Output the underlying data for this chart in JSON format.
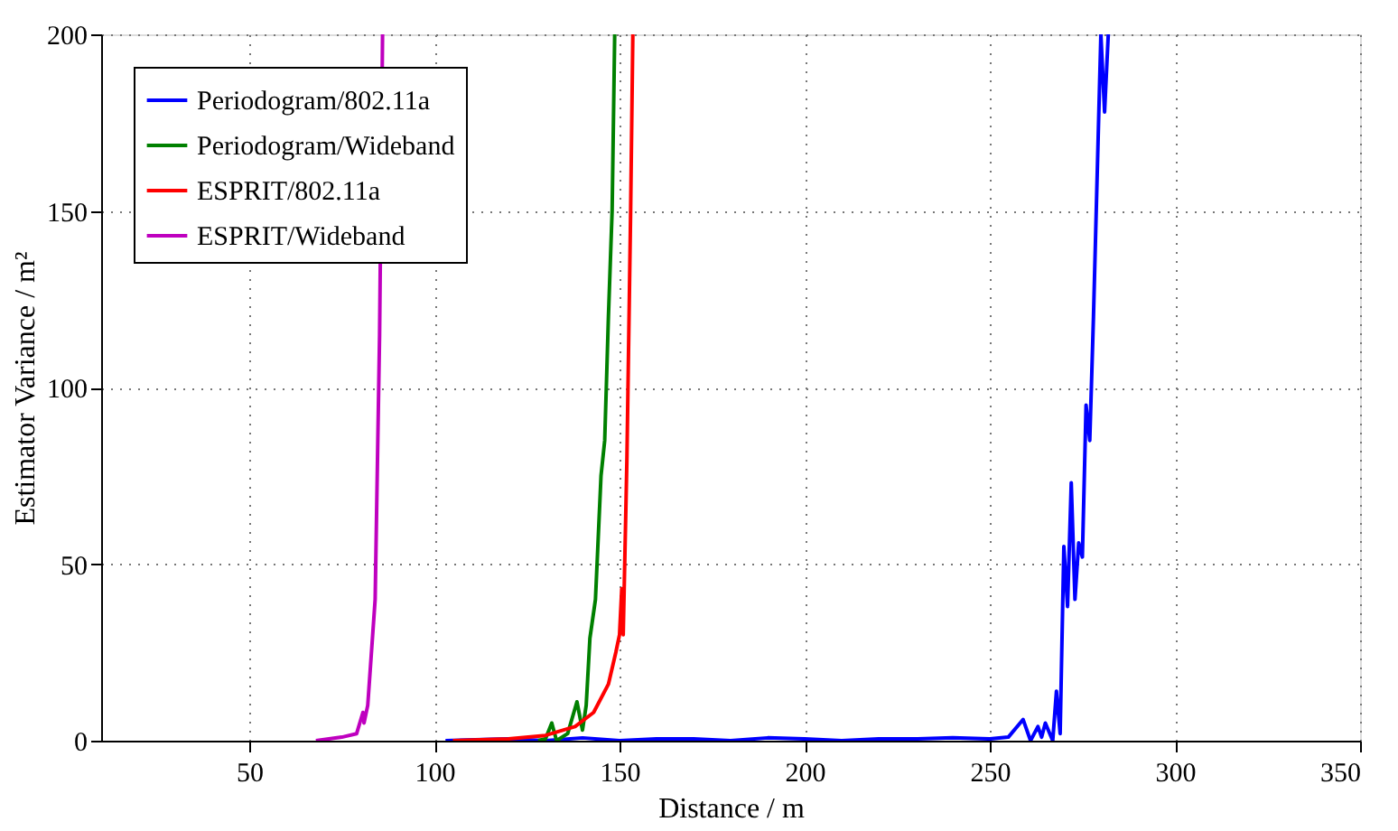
{
  "chart_data": {
    "type": "line",
    "xlabel": "Distance / m",
    "ylabel": "Estimator Variance / m²",
    "xlim": [
      10,
      350
    ],
    "ylim": [
      0,
      200
    ],
    "xticks": [
      50,
      100,
      150,
      200,
      250,
      300,
      350
    ],
    "yticks": [
      0,
      50,
      100,
      150,
      200
    ],
    "grid": true,
    "legend": "top left",
    "line_style": "solid",
    "marker": "none",
    "series": [
      {
        "name": "Periodogram/802.11a",
        "color": "#0000ff",
        "x": [
          103,
          120,
          130,
          140,
          150,
          160,
          170,
          180,
          190,
          200,
          210,
          220,
          230,
          240,
          250,
          255,
          259,
          261,
          263,
          264,
          265,
          267,
          268,
          269,
          270,
          271,
          272,
          273,
          274,
          275,
          276,
          277,
          278,
          280,
          281,
          282
        ],
        "values": [
          0,
          0.5,
          0,
          0.8,
          0,
          0.5,
          0.5,
          0,
          0.8,
          0.5,
          0,
          0.5,
          0.5,
          0.8,
          0.5,
          1,
          6,
          0,
          4,
          1,
          5,
          0,
          14,
          2,
          55,
          38,
          73,
          40,
          56,
          52,
          95,
          85,
          120,
          200,
          178,
          200
        ]
      },
      {
        "name": "Periodogram/Wideband",
        "color": "#008000",
        "x": [
          128,
          130,
          131.7,
          133,
          136,
          138.5,
          140,
          141,
          142,
          143.5,
          145,
          146,
          147,
          148,
          148.7
        ],
        "values": [
          0,
          0.5,
          5,
          0,
          2,
          11,
          3,
          10,
          29,
          40,
          75,
          85,
          120,
          150,
          200
        ]
      },
      {
        "name": "ESPRIT/802.11a",
        "color": "#ff0000",
        "x": [
          105,
          120,
          130,
          138,
          143,
          147,
          149,
          150,
          150.6,
          151,
          152,
          153,
          153.6
        ],
        "values": [
          0,
          0.5,
          1.5,
          4,
          8,
          16,
          25,
          30,
          43,
          30,
          80,
          150,
          200
        ]
      },
      {
        "name": "ESPRIT/Wideband",
        "color": "#bf00bf",
        "x": [
          68,
          75,
          79,
          80.7,
          81,
          82,
          84,
          85.2,
          86
        ],
        "values": [
          0,
          1,
          2,
          8,
          5,
          10,
          40,
          115,
          200
        ]
      }
    ]
  }
}
